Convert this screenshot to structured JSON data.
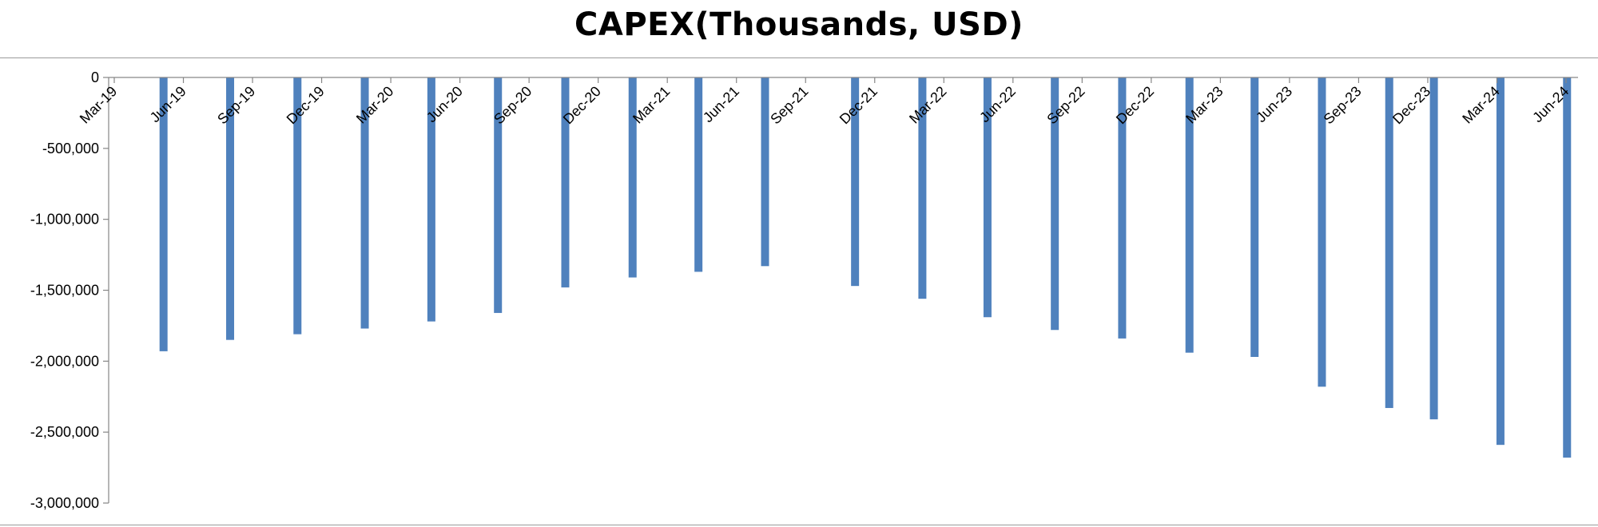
{
  "chart_data": {
    "type": "bar",
    "title": "CAPEX(Thousands, USD)",
    "xlabel": "",
    "ylabel": "",
    "ylim": [
      -3000000,
      0
    ],
    "yticks": [
      0,
      -500000,
      -1000000,
      -1500000,
      -2000000,
      -2500000,
      -3000000
    ],
    "ytick_labels": [
      "0",
      "-500,000",
      "-1,000,000",
      "-1,500,000",
      "-2,000,000",
      "-2,500,000",
      "-3,000,000"
    ],
    "grid": false,
    "legend": "none",
    "bar_color": "#4F81BD",
    "categories": [
      "Mar-19",
      "Jun-19",
      "Sep-19",
      "Dec-19",
      "Mar-20",
      "Jun-20",
      "Sep-20",
      "Dec-20",
      "Mar-21",
      "Jun-21",
      "Sep-21",
      "Dec-21",
      "Mar-22",
      "Jun-22",
      "Sep-22",
      "Dec-22",
      "Mar-23",
      "Jun-23",
      "Sep-23",
      "Dec-23",
      "Mar-24",
      "Jun-24"
    ],
    "bars": [
      {
        "date": "2019-03-31",
        "value": -1930000
      },
      {
        "date": "2019-06-30",
        "value": -1850000
      },
      {
        "date": "2019-09-30",
        "value": -1810000
      },
      {
        "date": "2019-12-31",
        "value": -1770000
      },
      {
        "date": "2020-03-31",
        "value": -1720000
      },
      {
        "date": "2020-06-30",
        "value": -1660000
      },
      {
        "date": "2020-09-30",
        "value": -1480000
      },
      {
        "date": "2020-12-31",
        "value": -1410000
      },
      {
        "date": "2021-03-31",
        "value": -1370000
      },
      {
        "date": "2021-06-30",
        "value": -1330000
      },
      {
        "date": "2021-10-31",
        "value": -1470000
      },
      {
        "date": "2022-01-31",
        "value": -1560000
      },
      {
        "date": "2022-04-30",
        "value": -1690000
      },
      {
        "date": "2022-07-31",
        "value": -1780000
      },
      {
        "date": "2022-10-31",
        "value": -1840000
      },
      {
        "date": "2023-01-31",
        "value": -1940000
      },
      {
        "date": "2023-04-30",
        "value": -1970000
      },
      {
        "date": "2023-07-31",
        "value": -2180000
      },
      {
        "date": "2023-10-31",
        "value": -2330000
      },
      {
        "date": "2023-12-31",
        "value": -2410000
      },
      {
        "date": "2024-03-31",
        "value": -2590000
      },
      {
        "date": "2024-06-30",
        "value": -2680000
      }
    ]
  }
}
